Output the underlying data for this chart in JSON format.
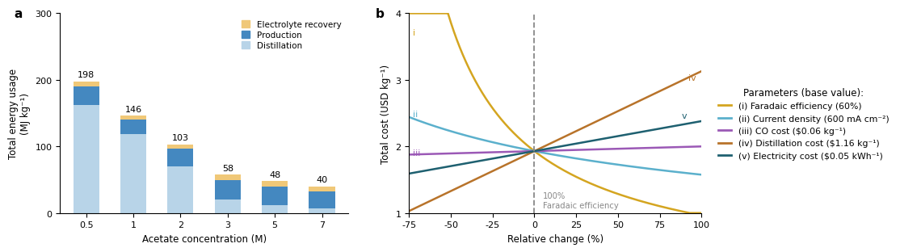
{
  "bar_categories": [
    "0.5",
    "1",
    "2",
    "3",
    "5",
    "7"
  ],
  "bar_totals": [
    198,
    146,
    103,
    58,
    48,
    40
  ],
  "distillation": [
    162,
    118,
    70,
    20,
    12,
    7
  ],
  "production": [
    28,
    22,
    27,
    30,
    28,
    25
  ],
  "electrolyte": [
    8,
    6,
    6,
    8,
    8,
    8
  ],
  "color_distillation": "#b8d4e8",
  "color_production": "#4488c0",
  "color_electrolyte": "#f0c878",
  "bar_ylim": [
    0,
    300
  ],
  "bar_yticks": [
    0,
    100,
    200,
    300
  ],
  "bar_xlabel": "Acetate concentration (M)",
  "bar_ylabel": "Total energy usage\n(MJ kg⁻¹)",
  "panel_a_label": "a",
  "panel_b_label": "b",
  "line_xlabel": "Relative change (%)",
  "line_ylabel": "Total cost (USD kg⁻¹)",
  "line_xlim": [
    -75,
    100
  ],
  "line_ylim": [
    1,
    4
  ],
  "line_yticks": [
    1,
    2,
    3,
    4
  ],
  "line_xticks": [
    -75,
    -50,
    -25,
    0,
    25,
    50,
    75,
    100
  ],
  "base_cost": 1.93,
  "color_i": "#d4a520",
  "color_ii": "#5bb0cc",
  "color_iii": "#9b59b6",
  "color_iv": "#b8732a",
  "color_v": "#1e6070",
  "legend_title": "Parameters (base value):",
  "legend_entries": [
    "(i) Faradaic efficiency (60%)",
    "(ii) Current density (600 mA cm⁻²)",
    "(iii) CO cost ($0.06 kg⁻¹)",
    "(iv) Distillation cost ($1.16 kg⁻¹)",
    "(v) Electricity cost ($0.05 kWh⁻¹)"
  ]
}
